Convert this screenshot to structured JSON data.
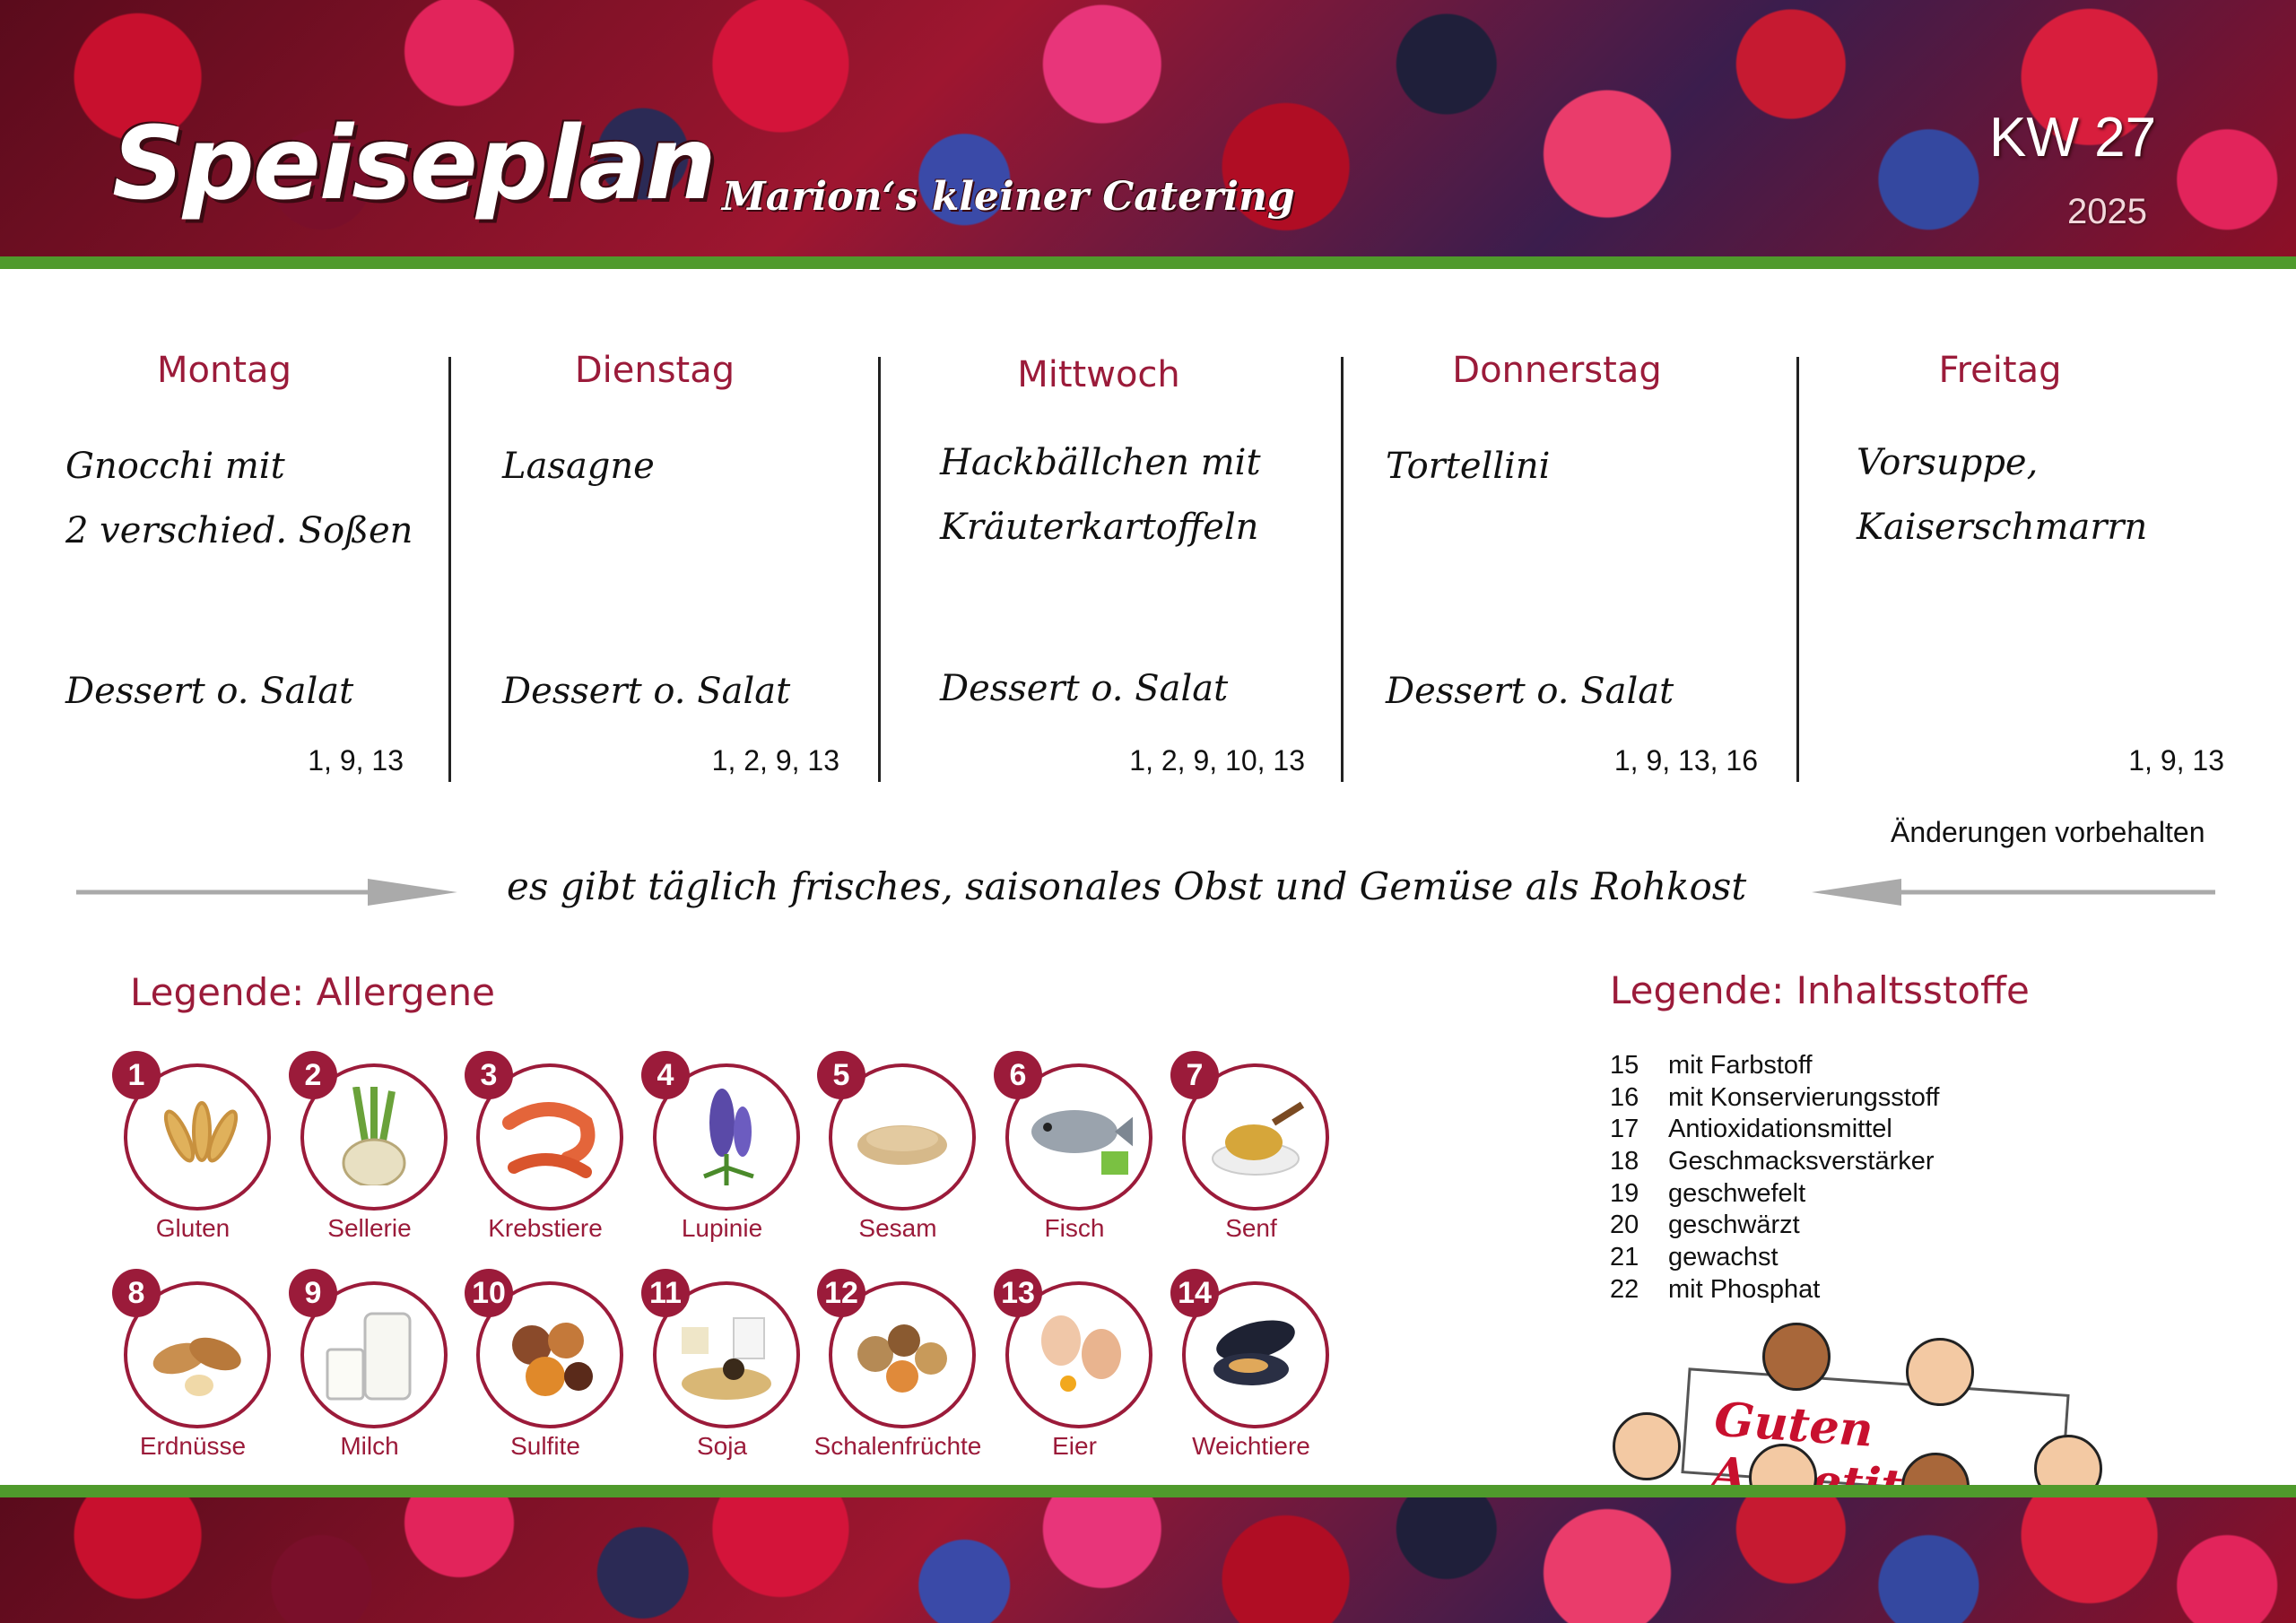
{
  "header": {
    "title": "Speiseplan",
    "subtitle": "Marion‘s kleiner Catering",
    "week": "KW 27",
    "year": "2025"
  },
  "days": [
    {
      "name": "Montag",
      "meal_lines": [
        "Gnocchi mit",
        "2 verschied. Soßen"
      ],
      "dessert": "Dessert o. Salat",
      "allergens": "1, 9, 13"
    },
    {
      "name": "Dienstag",
      "meal_lines": [
        "Lasagne",
        ""
      ],
      "dessert": "Dessert o. Salat",
      "allergens": "1, 2, 9, 13"
    },
    {
      "name": "Mittwoch",
      "meal_lines": [
        "Hackbällchen mit",
        "Kräuterkartoffeln"
      ],
      "dessert": "Dessert o. Salat",
      "allergens": "1, 2, 9, 10, 13"
    },
    {
      "name": "Donnerstag",
      "meal_lines": [
        "Tortellini",
        ""
      ],
      "dessert": "Dessert o. Salat",
      "allergens": "1, 9, 13, 16"
    },
    {
      "name": "Freitag",
      "meal_lines": [
        "Vorsuppe,",
        "Kaiserschmarrn"
      ],
      "dessert": "",
      "allergens": "1, 9, 13"
    }
  ],
  "notice": "Änderungen vorbehalten",
  "rohkost": "es gibt täglich frisches, saisonales Obst und Gemüse als Rohkost",
  "legend_allergens": {
    "title": "Legende: Allergene",
    "items": [
      {
        "num": "1",
        "label": "Gluten"
      },
      {
        "num": "2",
        "label": "Sellerie"
      },
      {
        "num": "3",
        "label": "Krebstiere"
      },
      {
        "num": "4",
        "label": "Lupinie"
      },
      {
        "num": "5",
        "label": "Sesam"
      },
      {
        "num": "6",
        "label": "Fisch"
      },
      {
        "num": "7",
        "label": "Senf"
      },
      {
        "num": "8",
        "label": "Erdnüsse"
      },
      {
        "num": "9",
        "label": "Milch"
      },
      {
        "num": "10",
        "label": "Sulfite"
      },
      {
        "num": "11",
        "label": "Soja"
      },
      {
        "num": "12",
        "label": "Schalenfrüchte"
      },
      {
        "num": "13",
        "label": "Eier"
      },
      {
        "num": "14",
        "label": "Weichtiere"
      }
    ]
  },
  "legend_ingredients": {
    "title": "Legende: Inhaltsstoffe",
    "items": [
      {
        "num": "15",
        "label": "mit Farbstoff"
      },
      {
        "num": "16",
        "label": "mit Konservierungsstoff"
      },
      {
        "num": "17",
        "label": "Antioxidationsmittel"
      },
      {
        "num": "18",
        "label": "Geschmacksverstärker"
      },
      {
        "num": "19",
        "label": "geschwefelt"
      },
      {
        "num": "20",
        "label": "geschwärzt"
      },
      {
        "num": "21",
        "label": "gewachst"
      },
      {
        "num": "22",
        "label": "mit Phosphat"
      }
    ]
  },
  "sign": "Guten Appetit!",
  "colors": {
    "accent": "#9b1b3a",
    "stripe": "#4f9a2c",
    "text": "#111111"
  }
}
